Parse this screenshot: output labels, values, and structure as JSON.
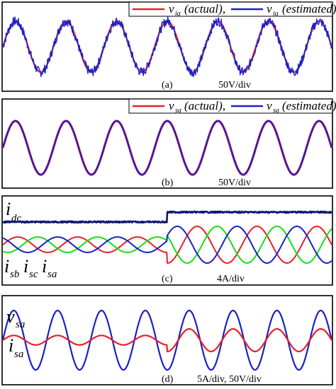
{
  "colors": {
    "red": "#e8202a",
    "blue": "#1b21c8",
    "green": "#16e016",
    "darkblue": "#0c1870",
    "frame": "#000000"
  },
  "chart_data": [
    {
      "type": "line",
      "panel_label": "(a)",
      "scale_label": "50V/div",
      "legend": [
        {
          "symbol": "v",
          "sub": "ia",
          "suffix": "(actual),",
          "color": "#e8202a"
        },
        {
          "symbol": "v",
          "sub": "ia",
          "suffix": "(estimated)",
          "color": "#1b21c8"
        }
      ],
      "series": [
        {
          "name": "v_ia (actual)",
          "color": "#e8202a",
          "cycles": 6.5,
          "amplitude": 1.0,
          "phase_deg": 0,
          "noise": 0.0
        },
        {
          "name": "v_ia (estimated)",
          "color": "#1b21c8",
          "cycles": 6.5,
          "amplitude": 1.0,
          "phase_deg": 0,
          "noise": 0.18
        }
      ],
      "grid": false
    },
    {
      "type": "line",
      "panel_label": "(b)",
      "scale_label": "50V/div",
      "legend": [
        {
          "symbol": "v",
          "sub": "sa",
          "suffix": "(actual),",
          "color": "#e8202a"
        },
        {
          "symbol": "v",
          "sub": "sa",
          "suffix": "(estimated)",
          "color": "#1b21c8"
        }
      ],
      "series": [
        {
          "name": "v_sa (actual)",
          "color": "#e8202a",
          "cycles": 6.5,
          "amplitude": 1.0,
          "phase_deg": 0,
          "noise": 0.0
        },
        {
          "name": "v_sa (estimated)",
          "color": "#1b21c8",
          "cycles": 6.5,
          "amplitude": 1.0,
          "phase_deg": 0,
          "noise": 0.0
        }
      ],
      "grid": false
    },
    {
      "type": "line",
      "panel_label": "(c)",
      "scale_label": "4A/div",
      "labels": {
        "idc_main": "i",
        "idc_sub": "dc",
        "isb_main": "i",
        "isb_sub": "sb",
        "isc_main": "i",
        "isc_sub": "sc",
        "isa_main": "i",
        "isa_sub": "sa"
      },
      "step_fraction": 0.5,
      "idc": {
        "before": 0.7,
        "after": 1.0
      },
      "series": [
        {
          "name": "i_sa",
          "color": "#e8202a",
          "cycles": 5.5,
          "amp_before": 0.42,
          "amp_after": 1.0,
          "phase_deg": 0
        },
        {
          "name": "i_sb",
          "color": "#16e016",
          "cycles": 5.5,
          "amp_before": 0.42,
          "amp_after": 1.0,
          "phase_deg": -120
        },
        {
          "name": "i_sc",
          "color": "#1b21c8",
          "cycles": 5.5,
          "amp_before": 0.42,
          "amp_after": 1.0,
          "phase_deg": 120
        }
      ],
      "grid": false
    },
    {
      "type": "line",
      "panel_label": "(d)",
      "scale_label": "5A/div, 50V/div",
      "labels": {
        "vsa_main": "v",
        "vsa_sub": "sa",
        "isa_main": "i",
        "isa_sub": "sa"
      },
      "series": [
        {
          "name": "v_sa",
          "color": "#1b21c8",
          "cycles": 7.5,
          "amplitude": 1.0,
          "phase_deg": 0
        },
        {
          "name": "i_sa",
          "color": "#e8202a",
          "cycles": 7.5,
          "amp_before": 0.16,
          "amp_after": 0.38,
          "step_fraction": 0.5,
          "phase_deg": 0
        }
      ],
      "grid": false
    }
  ]
}
